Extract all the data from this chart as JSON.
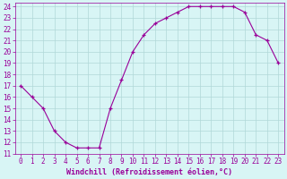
{
  "x": [
    0,
    1,
    2,
    3,
    4,
    5,
    6,
    7,
    8,
    9,
    10,
    11,
    12,
    13,
    14,
    15,
    16,
    17,
    18,
    19,
    20,
    21,
    22,
    23
  ],
  "y": [
    17.0,
    16.0,
    15.0,
    13.0,
    12.0,
    11.5,
    11.5,
    11.5,
    15.0,
    17.5,
    20.0,
    21.5,
    22.5,
    23.0,
    23.5,
    24.0,
    24.0,
    24.0,
    24.0,
    24.0,
    23.5,
    21.5,
    21.0,
    19.0
  ],
  "line_color": "#990099",
  "marker": "+",
  "bg_color": "#d8f5f5",
  "grid_color": "#b0d8d8",
  "xlabel": "Windchill (Refroidissement éolien,°C)",
  "xlabel_color": "#990099",
  "tick_color": "#990099",
  "spine_color": "#990099",
  "ylim_min": 11,
  "ylim_max": 24,
  "xlim_min": 0,
  "xlim_max": 23,
  "ytick_step": 1,
  "xtick_step": 1,
  "font_size": 5.5,
  "label_font_size": 6.0,
  "marker_size": 3,
  "linewidth": 0.8
}
